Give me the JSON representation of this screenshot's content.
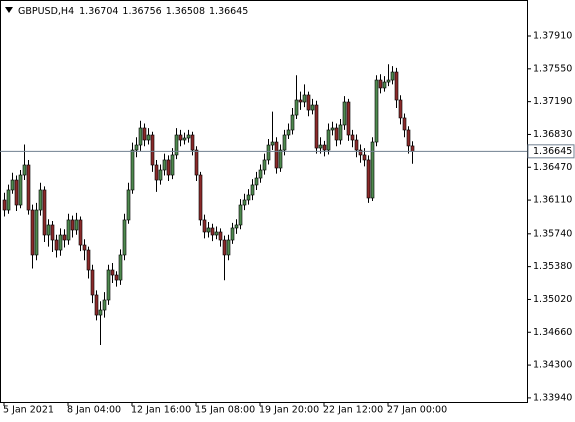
{
  "chart_data": {
    "type": "candlestick",
    "title": "GBPUSD,H4",
    "categories": [
      "5 Jan 2021",
      null,
      null,
      null,
      null,
      null,
      null,
      null,
      null,
      null,
      null,
      null,
      null,
      null,
      null,
      null,
      "8 Jan 04:00",
      null,
      null,
      null,
      null,
      null,
      null,
      null,
      null,
      null,
      null,
      null,
      null,
      null,
      null,
      null,
      "12 Jan 16:00",
      null,
      null,
      null,
      null,
      null,
      null,
      null,
      null,
      null,
      null,
      null,
      null,
      null,
      null,
      null,
      "15 Jan 08:00",
      null,
      null,
      null,
      null,
      null,
      null,
      null,
      null,
      null,
      null,
      null,
      null,
      null,
      null,
      null,
      "19 Jan 20:00",
      null,
      null,
      null,
      null,
      null,
      null,
      null,
      null,
      null,
      null,
      null,
      null,
      null,
      null,
      null,
      "22 Jan 12:00",
      null,
      null,
      null,
      null,
      null,
      null,
      null,
      null,
      null,
      null,
      null,
      null,
      null,
      null,
      null,
      "27 Jan 00:00",
      null,
      null,
      null,
      null,
      null,
      null
    ],
    "open": [
      1.36111,
      1.36001,
      1.36221,
      1.3633,
      1.36056,
      1.36385,
      1.36495,
      1.36001,
      1.35508,
      1.36001,
      1.36221,
      1.35727,
      1.35837,
      1.35672,
      1.35562,
      1.35727,
      1.35672,
      1.35892,
      1.35782,
      1.35892,
      1.35617,
      1.35562,
      1.35343,
      1.35069,
      1.34849,
      1.34904,
      1.35014,
      1.35343,
      1.35288,
      1.35233,
      1.35508,
      1.35892,
      1.36221,
      1.36659,
      1.36714,
      1.36901,
      1.36769,
      1.36824,
      1.36495,
      1.3633,
      1.3644,
      1.3655,
      1.36385,
      1.36605,
      1.36824,
      1.36769,
      1.36791,
      1.36824,
      1.36659,
      1.36385,
      1.35892,
      1.3576,
      1.35804,
      1.35727,
      1.3576,
      1.35672,
      1.35508,
      1.35672,
      1.35804,
      1.35837,
      1.36056,
      1.36111,
      1.36166,
      1.36276,
      1.36352,
      1.3644,
      1.3655,
      1.36714,
      1.36747,
      1.36462,
      1.36659,
      1.36824,
      1.36879,
      1.37043,
      1.37208,
      1.37186,
      1.37263,
      1.37098,
      1.37153,
      1.36681,
      1.36714,
      1.36659,
      1.36879,
      1.36901,
      1.36769,
      1.36934,
      1.37186,
      1.36824,
      1.36769,
      1.36659,
      1.36605,
      1.3655,
      1.36133,
      1.36747,
      1.37427,
      1.3734,
      1.37405,
      1.37427,
      1.37515,
      1.37208,
      1.37011,
      1.36879,
      1.36704
    ],
    "high": [
      1.3619,
      1.3628,
      1.3641,
      1.3638,
      1.3644,
      1.3672,
      1.3655,
      1.3606,
      1.3608,
      1.363,
      1.3626,
      1.359,
      1.3588,
      1.3573,
      1.358,
      1.3579,
      1.3596,
      1.3594,
      1.3597,
      1.3593,
      1.3568,
      1.356,
      1.354,
      1.3512,
      1.35,
      1.351,
      1.354,
      1.3542,
      1.3533,
      1.3557,
      1.3596,
      1.363,
      1.3674,
      1.368,
      1.3698,
      1.3695,
      1.369,
      1.3686,
      1.3655,
      1.365,
      1.3662,
      1.366,
      1.3668,
      1.369,
      1.3688,
      1.3685,
      1.3688,
      1.3686,
      1.367,
      1.3642,
      1.3595,
      1.3587,
      1.3585,
      1.3582,
      1.358,
      1.3572,
      1.3573,
      1.3586,
      1.359,
      1.3612,
      1.3618,
      1.3623,
      1.3634,
      1.3642,
      1.365,
      1.3662,
      1.3678,
      1.3708,
      1.368,
      1.3672,
      1.3688,
      1.3695,
      1.3712,
      1.3748,
      1.373,
      1.3738,
      1.373,
      1.3722,
      1.372,
      1.368,
      1.3676,
      1.3695,
      1.3697,
      1.3695,
      1.37,
      1.3725,
      1.3722,
      1.3688,
      1.3683,
      1.3672,
      1.3668,
      1.366,
      1.368,
      1.3748,
      1.3749,
      1.3747,
      1.376,
      1.3758,
      1.3756,
      1.3726,
      1.3706,
      1.3692,
      1.36756
    ],
    "low": [
      1.3593,
      1.3596,
      1.3618,
      1.3599,
      1.3602,
      1.3633,
      1.3595,
      1.3536,
      1.3545,
      1.3594,
      1.3565,
      1.356,
      1.3554,
      1.3548,
      1.355,
      1.3559,
      1.3562,
      1.357,
      1.3573,
      1.3555,
      1.3545,
      1.3525,
      1.3498,
      1.3479,
      1.3452,
      1.3482,
      1.3496,
      1.352,
      1.3516,
      1.3518,
      1.3545,
      1.3585,
      1.3618,
      1.3658,
      1.3665,
      1.367,
      1.3672,
      1.3642,
      1.362,
      1.3628,
      1.3638,
      1.3632,
      1.3634,
      1.3656,
      1.367,
      1.3672,
      1.3674,
      1.366,
      1.3632,
      1.3583,
      1.3569,
      1.357,
      1.3566,
      1.3568,
      1.356,
      1.3523,
      1.3545,
      1.3563,
      1.3574,
      1.3579,
      1.36,
      1.3606,
      1.3611,
      1.3622,
      1.363,
      1.3639,
      1.365,
      1.3666,
      1.364,
      1.3642,
      1.366,
      1.3678,
      1.3683,
      1.37,
      1.371,
      1.3713,
      1.3703,
      1.3705,
      1.3662,
      1.3662,
      1.3659,
      1.3661,
      1.3682,
      1.367,
      1.3672,
      1.3688,
      1.3676,
      1.3669,
      1.3658,
      1.3652,
      1.3648,
      1.3608,
      1.361,
      1.367,
      1.3728,
      1.373,
      1.3736,
      1.3738,
      1.3712,
      1.3694,
      1.368,
      1.3662,
      1.36508
    ],
    "close": [
      1.36001,
      1.36221,
      1.3633,
      1.36056,
      1.36385,
      1.36495,
      1.36001,
      1.35508,
      1.36001,
      1.36221,
      1.35727,
      1.35837,
      1.35672,
      1.35562,
      1.35727,
      1.35672,
      1.35892,
      1.35782,
      1.35892,
      1.35617,
      1.35562,
      1.35343,
      1.35069,
      1.34849,
      1.34904,
      1.35014,
      1.35343,
      1.35288,
      1.35233,
      1.35508,
      1.35892,
      1.36221,
      1.36659,
      1.36714,
      1.36901,
      1.36769,
      1.36824,
      1.36495,
      1.3633,
      1.3644,
      1.3655,
      1.36385,
      1.36605,
      1.36824,
      1.36769,
      1.36791,
      1.36824,
      1.36659,
      1.36385,
      1.35892,
      1.3576,
      1.35804,
      1.35727,
      1.3576,
      1.35672,
      1.35508,
      1.35672,
      1.35804,
      1.35837,
      1.36056,
      1.36111,
      1.36166,
      1.36276,
      1.36352,
      1.3644,
      1.3655,
      1.36714,
      1.36747,
      1.36462,
      1.36659,
      1.36824,
      1.36879,
      1.37043,
      1.37208,
      1.37186,
      1.37263,
      1.37098,
      1.37153,
      1.36681,
      1.36714,
      1.36659,
      1.36879,
      1.36901,
      1.36769,
      1.36934,
      1.37186,
      1.36824,
      1.36769,
      1.36659,
      1.36605,
      1.3655,
      1.36133,
      1.36747,
      1.37427,
      1.3734,
      1.37405,
      1.37427,
      1.37515,
      1.37208,
      1.37011,
      1.36879,
      1.36704,
      1.36645
    ],
    "ylim": [
      1.33895,
      1.38305
    ],
    "yticks": [
      {
        "value": 1.3791,
        "label": "1.37910"
      },
      {
        "value": 1.3755,
        "label": "1.37550"
      },
      {
        "value": 1.3719,
        "label": "1.37190"
      },
      {
        "value": 1.3683,
        "label": "1.36830"
      },
      {
        "value": 1.3647,
        "label": "1.36470"
      },
      {
        "value": 1.3611,
        "label": "1.36110"
      },
      {
        "value": 1.3574,
        "label": "1.35740"
      },
      {
        "value": 1.3538,
        "label": "1.35380"
      },
      {
        "value": 1.3502,
        "label": "1.35020"
      },
      {
        "value": 1.3466,
        "label": "1.34660"
      },
      {
        "value": 1.343,
        "label": "1.34300"
      },
      {
        "value": 1.3394,
        "label": "1.33940"
      }
    ],
    "up_color": "#4f8a4f",
    "down_color": "#8b2a2a",
    "wick_color": "#000000",
    "price_line_color": "#708090",
    "current_price_line": true,
    "grid": false
  }
}
